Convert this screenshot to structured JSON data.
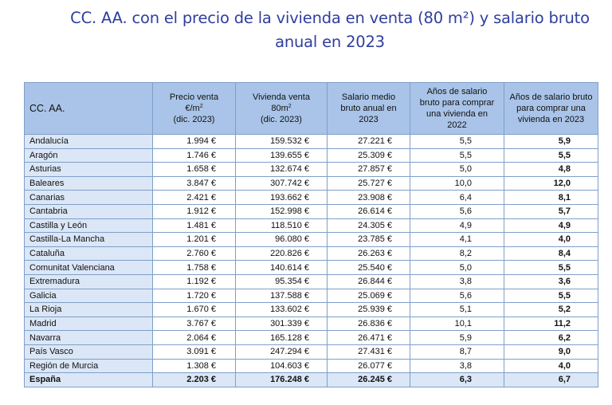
{
  "title": {
    "line1": "CC. AA. con el precio de la vivienda en venta (80 m²) y salario bruto",
    "line2": "anual en 2023"
  },
  "table": {
    "headers": {
      "ccaa": "CC. AA.",
      "precio_l1": "Precio venta",
      "precio_l2a": "€/m",
      "precio_l2sup": "2",
      "precio_l3": "(dic. 2023)",
      "vivienda_l1": "Vivienda venta",
      "vivienda_l2a": "80m",
      "vivienda_l2sup": "2",
      "vivienda_l3": "(dic. 2023)",
      "salario": "Salario medio bruto anual en 2023",
      "anos2022": "Años de salario bruto para comprar una vivienda en 2022",
      "anos2023": "Años de salario bruto para comprar una vivienda en 2023"
    },
    "rows": [
      {
        "name": "Andalucía",
        "precio": "1.994 €",
        "vivienda": "159.532  €",
        "salario": "27.221  €",
        "anos2022": "5,5",
        "anos2023": "5,9"
      },
      {
        "name": "Aragón",
        "precio": "1.746 €",
        "vivienda": "139.655  €",
        "salario": "25.309  €",
        "anos2022": "5,5",
        "anos2023": "5,5"
      },
      {
        "name": "Asturias",
        "precio": "1.658 €",
        "vivienda": "132.674  €",
        "salario": "27.857  €",
        "anos2022": "5,0",
        "anos2023": "4,8"
      },
      {
        "name": "Baleares",
        "precio": "3.847 €",
        "vivienda": "307.742  €",
        "salario": "25.727  €",
        "anos2022": "10,0",
        "anos2023": "12,0"
      },
      {
        "name": "Canarias",
        "precio": "2.421 €",
        "vivienda": "193.662  €",
        "salario": "23.908  €",
        "anos2022": "6,4",
        "anos2023": "8,1"
      },
      {
        "name": "Cantabria",
        "precio": "1.912 €",
        "vivienda": "152.998  €",
        "salario": "26.614  €",
        "anos2022": "5,6",
        "anos2023": "5,7"
      },
      {
        "name": "Castilla y León",
        "precio": "1.481 €",
        "vivienda": "118.510  €",
        "salario": "24.305  €",
        "anos2022": "4,9",
        "anos2023": "4,9"
      },
      {
        "name": "Castilla-La Mancha",
        "precio": "1.201 €",
        "vivienda": "96.080  €",
        "salario": "23.785  €",
        "anos2022": "4,1",
        "anos2023": "4,0"
      },
      {
        "name": "Cataluña",
        "precio": "2.760 €",
        "vivienda": "220.826  €",
        "salario": "26.263  €",
        "anos2022": "8,2",
        "anos2023": "8,4"
      },
      {
        "name": "Comunitat Valenciana",
        "precio": "1.758 €",
        "vivienda": "140.614  €",
        "salario": "25.540  €",
        "anos2022": "5,0",
        "anos2023": "5,5"
      },
      {
        "name": "Extremadura",
        "precio": "1.192 €",
        "vivienda": "95.354  €",
        "salario": "26.844  €",
        "anos2022": "3,8",
        "anos2023": "3,6"
      },
      {
        "name": "Galicia",
        "precio": "1.720 €",
        "vivienda": "137.588  €",
        "salario": "25.069  €",
        "anos2022": "5,6",
        "anos2023": "5,5"
      },
      {
        "name": "La Rioja",
        "precio": "1.670 €",
        "vivienda": "133.602  €",
        "salario": "25.939  €",
        "anos2022": "5,1",
        "anos2023": "5,2"
      },
      {
        "name": "Madrid",
        "precio": "3.767 €",
        "vivienda": "301.339  €",
        "salario": "26.836  €",
        "anos2022": "10,1",
        "anos2023": "11,2"
      },
      {
        "name": "Navarra",
        "precio": "2.064 €",
        "vivienda": "165.128  €",
        "salario": "26.471  €",
        "anos2022": "5,9",
        "anos2023": "6,2"
      },
      {
        "name": "País Vasco",
        "precio": "3.091 €",
        "vivienda": "247.294  €",
        "salario": "27.431  €",
        "anos2022": "8,7",
        "anos2023": "9,0"
      },
      {
        "name": "Región de Murcia",
        "precio": "1.308 €",
        "vivienda": "104.603  €",
        "salario": "26.077  €",
        "anos2022": "3,8",
        "anos2023": "4,0"
      }
    ],
    "total": {
      "name": "España",
      "precio": "2.203 €",
      "vivienda": "176.248  €",
      "salario": "26.245  €",
      "anos2022": "6,3",
      "anos2023": "6,7"
    }
  }
}
